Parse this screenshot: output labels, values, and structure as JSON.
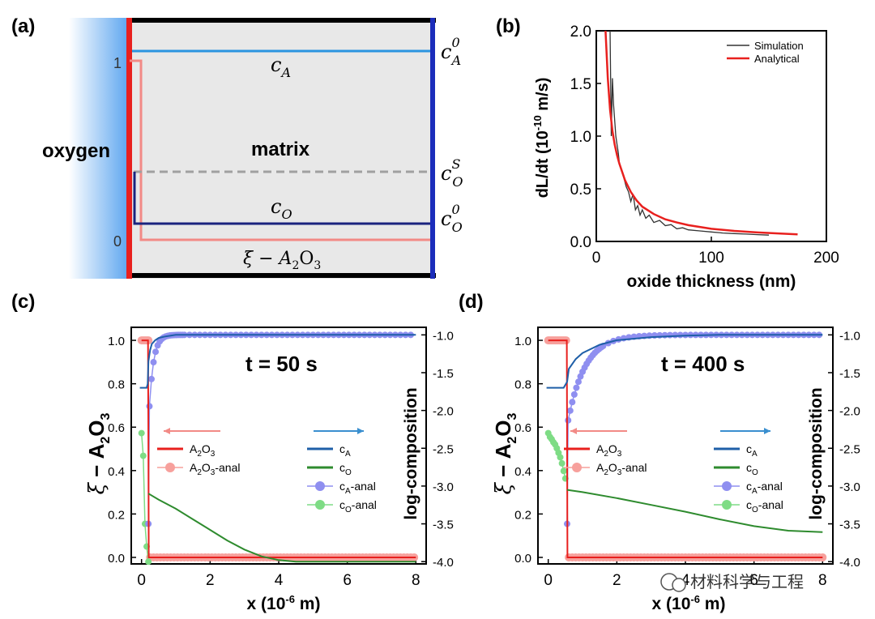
{
  "panels": {
    "a": {
      "label": "(a)",
      "oxygen_label": "oxygen",
      "matrix_label": "matrix",
      "tick_1": "1",
      "tick_0": "0",
      "line_labels": {
        "cA": {
          "main": "c",
          "sub": "A"
        },
        "cO": {
          "main": "c",
          "sub": "O"
        },
        "xi": {
          "text": "ξ − A",
          "sub": "2",
          "rest": "O",
          "sub2": "3"
        },
        "cA0": {
          "main": "c",
          "sub": "A",
          "sup": "0"
        },
        "cOS": {
          "main": "c",
          "sub": "O",
          "sup": "S"
        },
        "cO0": {
          "main": "c",
          "sub": "O",
          "sup": "0"
        }
      },
      "colors": {
        "oxygen": "#6aaef0",
        "interface": "#e8201e",
        "matrix": "#e8e8e8",
        "border": "#000000",
        "right_border": "#1b2dbb",
        "cA": "#2b95e0",
        "cO": "#1a237e",
        "xi": "#f28a86",
        "cOS": "#a0a0a0"
      }
    },
    "b": {
      "label": "(b)"
    },
    "c": {
      "label": "(c)",
      "time": "t = 50 s"
    },
    "d": {
      "label": "(d)",
      "time": "t = 400 s"
    }
  },
  "watermark": "材料科学与工程",
  "chart_data": [
    {
      "panel": "b",
      "type": "line",
      "xlabel": "oxide thickness (nm)",
      "ylabel": "dL/dt (10-10 m/s)",
      "xlim": [
        0,
        200
      ],
      "ylim": [
        0,
        2.0
      ],
      "xticks": [
        "0",
        "100",
        "200"
      ],
      "yticks": [
        "0.0",
        "0.5",
        "1.0",
        "1.5",
        "2.0"
      ],
      "legend_position": "top-right",
      "series": [
        {
          "name": "Simulation",
          "color": "#333333",
          "x": [
            12,
            13,
            14,
            15,
            16,
            17,
            18,
            19,
            20,
            22,
            24,
            26,
            28,
            30,
            32,
            34,
            36,
            38,
            40,
            43,
            46,
            50,
            55,
            60,
            65,
            70,
            75,
            80,
            90,
            100,
            110,
            120,
            130,
            140,
            150
          ],
          "y": [
            2.0,
            1.0,
            1.55,
            1.3,
            1.15,
            1.0,
            0.92,
            0.85,
            0.75,
            0.68,
            0.6,
            0.52,
            0.47,
            0.38,
            0.45,
            0.3,
            0.34,
            0.25,
            0.3,
            0.22,
            0.25,
            0.18,
            0.2,
            0.15,
            0.16,
            0.12,
            0.13,
            0.11,
            0.1,
            0.09,
            0.08,
            0.075,
            0.07,
            0.065,
            0.06
          ]
        },
        {
          "name": "Analytical",
          "color": "#e8201e",
          "x": [
            8,
            10,
            12,
            14,
            16,
            18,
            20,
            25,
            30,
            35,
            40,
            50,
            60,
            70,
            80,
            100,
            120,
            140,
            160,
            175
          ],
          "y": [
            2.0,
            1.55,
            1.25,
            1.05,
            0.92,
            0.82,
            0.74,
            0.58,
            0.47,
            0.39,
            0.33,
            0.26,
            0.21,
            0.18,
            0.155,
            0.12,
            0.1,
            0.085,
            0.075,
            0.068
          ]
        }
      ]
    },
    {
      "panel": "c",
      "type": "line",
      "xlabel": "x (10-6 m)",
      "ylabel_left": "ξ − A2O3",
      "ylabel_right": "log-composition",
      "xlim": [
        -0.3,
        8.3
      ],
      "ylim_left": [
        -0.03,
        1.06
      ],
      "ylim_right": [
        -4.03,
        -0.9
      ],
      "xticks": [
        "0",
        "2",
        "4",
        "6",
        "8"
      ],
      "yticks_left": [
        "0.0",
        "0.2",
        "0.4",
        "0.6",
        "0.8",
        "1.0"
      ],
      "yticks_right": [
        "-1.0",
        "-1.5",
        "-2.0",
        "-2.5",
        "-3.0",
        "-3.5",
        "-4.0"
      ],
      "legend_left": [
        "A2O3",
        "A2O3-anal"
      ],
      "legend_right": [
        "cA",
        "cO",
        "cA-anal",
        "cO-anal"
      ],
      "interface_x": 0.2,
      "series": [
        {
          "name": "A2O3",
          "axis": "left",
          "color": "#e8201e",
          "x": [
            0,
            0.19,
            0.2,
            0.21,
            8
          ],
          "y": [
            1.0,
            1.0,
            0.5,
            0.0,
            0.0
          ]
        },
        {
          "name": "cA",
          "axis": "right",
          "color": "#1f5fa8",
          "x": [
            -0.05,
            0.15,
            0.18,
            0.2,
            0.25,
            0.3,
            0.4,
            0.5,
            0.7,
            1.0,
            1.5,
            2.5,
            8
          ],
          "y": [
            -1.7,
            -1.7,
            -1.65,
            -1.35,
            -1.2,
            -1.12,
            -1.07,
            -1.04,
            -1.02,
            -1.0,
            -1.0,
            -1.0,
            -1.0
          ]
        },
        {
          "name": "cO",
          "axis": "right",
          "color": "#2e8b2e",
          "x": [
            0.2,
            0.5,
            1.0,
            1.5,
            2.0,
            2.5,
            3.0,
            3.5,
            4.0,
            4.5,
            5.0,
            6.0,
            7.0,
            8.0
          ],
          "y": [
            -3.1,
            -3.18,
            -3.3,
            -3.44,
            -3.58,
            -3.72,
            -3.84,
            -3.93,
            -3.98,
            -4.0,
            -4.0,
            -4.0,
            -4.0,
            -4.0
          ]
        },
        {
          "name": "cA-anal",
          "axis": "right",
          "color": "#8f8ff0"
        },
        {
          "name": "cO-anal",
          "axis": "right",
          "color": "#7edc85"
        },
        {
          "name": "A2O3-anal",
          "axis": "left",
          "color": "#f7a09c"
        }
      ]
    },
    {
      "panel": "d",
      "type": "line",
      "xlabel": "x (10-6 m)",
      "ylabel_left": "ξ − A2O3",
      "ylabel_right": "log-composition",
      "xlim": [
        -0.3,
        8.3
      ],
      "ylim_left": [
        -0.03,
        1.06
      ],
      "ylim_right": [
        -4.03,
        -0.9
      ],
      "xticks": [
        "0",
        "2",
        "4",
        "6",
        "8"
      ],
      "yticks_left": [
        "0.0",
        "0.2",
        "0.4",
        "0.6",
        "0.8",
        "1.0"
      ],
      "yticks_right": [
        "-1.0",
        "-1.5",
        "-2.0",
        "-2.5",
        "-3.0",
        "-3.5",
        "-4.0"
      ],
      "legend_left": [
        "A2O3",
        "A2O3-anal"
      ],
      "legend_right": [
        "cA",
        "cO",
        "cA-anal",
        "cO-anal"
      ],
      "interface_x": 0.55,
      "series": [
        {
          "name": "A2O3",
          "axis": "left",
          "color": "#e8201e",
          "x": [
            0,
            0.54,
            0.55,
            0.56,
            8
          ],
          "y": [
            1.0,
            1.0,
            0.5,
            0.0,
            0.0
          ]
        },
        {
          "name": "cA",
          "axis": "right",
          "color": "#1f5fa8",
          "x": [
            -0.05,
            0.45,
            0.55,
            0.6,
            0.8,
            1.0,
            1.5,
            2.0,
            3.0,
            4.0,
            5.0,
            8.0
          ],
          "y": [
            -1.7,
            -1.7,
            -1.62,
            -1.45,
            -1.32,
            -1.24,
            -1.13,
            -1.07,
            -1.03,
            -1.01,
            -1.0,
            -1.0
          ]
        },
        {
          "name": "cO",
          "axis": "right",
          "color": "#2e8b2e",
          "x": [
            0.55,
            1.0,
            2.0,
            3.0,
            4.0,
            5.0,
            6.0,
            7.0,
            8.0
          ],
          "y": [
            -3.05,
            -3.08,
            -3.16,
            -3.25,
            -3.34,
            -3.44,
            -3.53,
            -3.59,
            -3.61
          ]
        },
        {
          "name": "cA-anal",
          "axis": "right",
          "color": "#8f8ff0"
        },
        {
          "name": "cO-anal",
          "axis": "right",
          "color": "#7edc85"
        },
        {
          "name": "A2O3-anal",
          "axis": "left",
          "color": "#f7a09c"
        }
      ]
    }
  ]
}
